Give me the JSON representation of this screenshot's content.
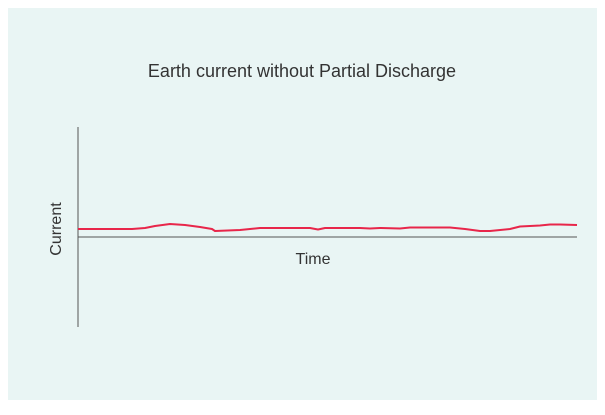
{
  "chart_data": {
    "type": "line",
    "title": "Earth current without Partial Discharge",
    "x_label": "Time",
    "y_label": "Current",
    "color": "#e8264a",
    "x": [
      0,
      54,
      67,
      77,
      92,
      107,
      122,
      134,
      137,
      162,
      172,
      182,
      232,
      240,
      247,
      282,
      292,
      302,
      322,
      332,
      372,
      387,
      402,
      412,
      432,
      442,
      462,
      472,
      482,
      499
    ],
    "values": [
      0.8,
      0.8,
      0.9,
      1.1,
      1.3,
      1.2,
      1.0,
      0.8,
      0.6,
      0.7,
      0.8,
      0.9,
      0.9,
      0.75,
      0.9,
      0.9,
      0.85,
      0.9,
      0.85,
      0.95,
      0.95,
      0.8,
      0.6,
      0.6,
      0.8,
      1.05,
      1.15,
      1.25,
      1.25,
      1.2
    ],
    "xlim": [
      0,
      499
    ],
    "ylim": [
      -9,
      11
    ]
  }
}
